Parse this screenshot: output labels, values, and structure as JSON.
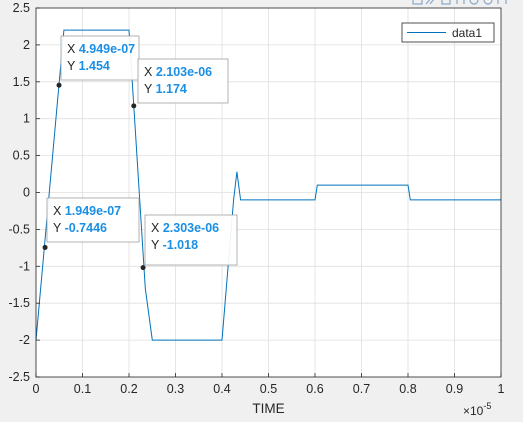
{
  "chart_data": {
    "type": "line",
    "xlabel": "TIME",
    "ylabel": "",
    "x_exponent_label": "×10",
    "x_exponent_power": "-5",
    "xlim": [
      0,
      1
    ],
    "ylim": [
      -2.5,
      2.5
    ],
    "x_ticks": [
      0,
      0.1,
      0.2,
      0.3,
      0.4,
      0.5,
      0.6,
      0.7,
      0.8,
      0.9,
      1
    ],
    "x_tick_labels": [
      "0",
      "0.1",
      "0.2",
      "0.3",
      "0.4",
      "0.5",
      "0.6",
      "0.7",
      "0.8",
      "0.9",
      "1"
    ],
    "y_ticks": [
      -2.5,
      -2,
      -1.5,
      -1,
      -0.5,
      0,
      0.5,
      1,
      1.5,
      2,
      2.5
    ],
    "y_tick_labels": [
      "-2.5",
      "-2",
      "-1.5",
      "-1",
      "-0.5",
      "0",
      "0.5",
      "1",
      "1.5",
      "2",
      "2.5"
    ],
    "grid": true,
    "legend_position": "top-right",
    "series": [
      {
        "name": "data1",
        "color": "#0072bd",
        "x": [
          0,
          0.06,
          0.2,
          0.235,
          0.25,
          0.4,
          0.425,
          0.432,
          0.44,
          0.6,
          0.605,
          0.8,
          0.805,
          1.0
        ],
        "y": [
          -2.0,
          2.2,
          2.2,
          -1.3,
          -2.0,
          -2.0,
          -0.1,
          0.28,
          -0.1,
          -0.1,
          0.1,
          0.1,
          -0.1,
          -0.1
        ]
      }
    ],
    "datatips": [
      {
        "x_label": "X",
        "x_value": "4.949e-07",
        "y_label": "Y",
        "y_value": "1.454",
        "px": 0.0495,
        "py": 1.454
      },
      {
        "x_label": "X",
        "x_value": "2.103e-06",
        "y_label": "Y",
        "y_value": "1.174",
        "px": 0.2103,
        "py": 1.174
      },
      {
        "x_label": "X",
        "x_value": "1.949e-07",
        "y_label": "Y",
        "y_value": "-0.7446",
        "px": 0.0195,
        "py": -0.7446
      },
      {
        "x_label": "X",
        "x_value": "2.303e-06",
        "y_label": "Y",
        "y_value": "-1.018",
        "px": 0.2303,
        "py": -1.018
      }
    ]
  },
  "toolbar": {
    "icons": [
      "data-tip-icon",
      "brush-icon",
      "save-icon",
      "pan-icon",
      "zoom-in-icon",
      "zoom-out-icon",
      "home-icon"
    ]
  }
}
